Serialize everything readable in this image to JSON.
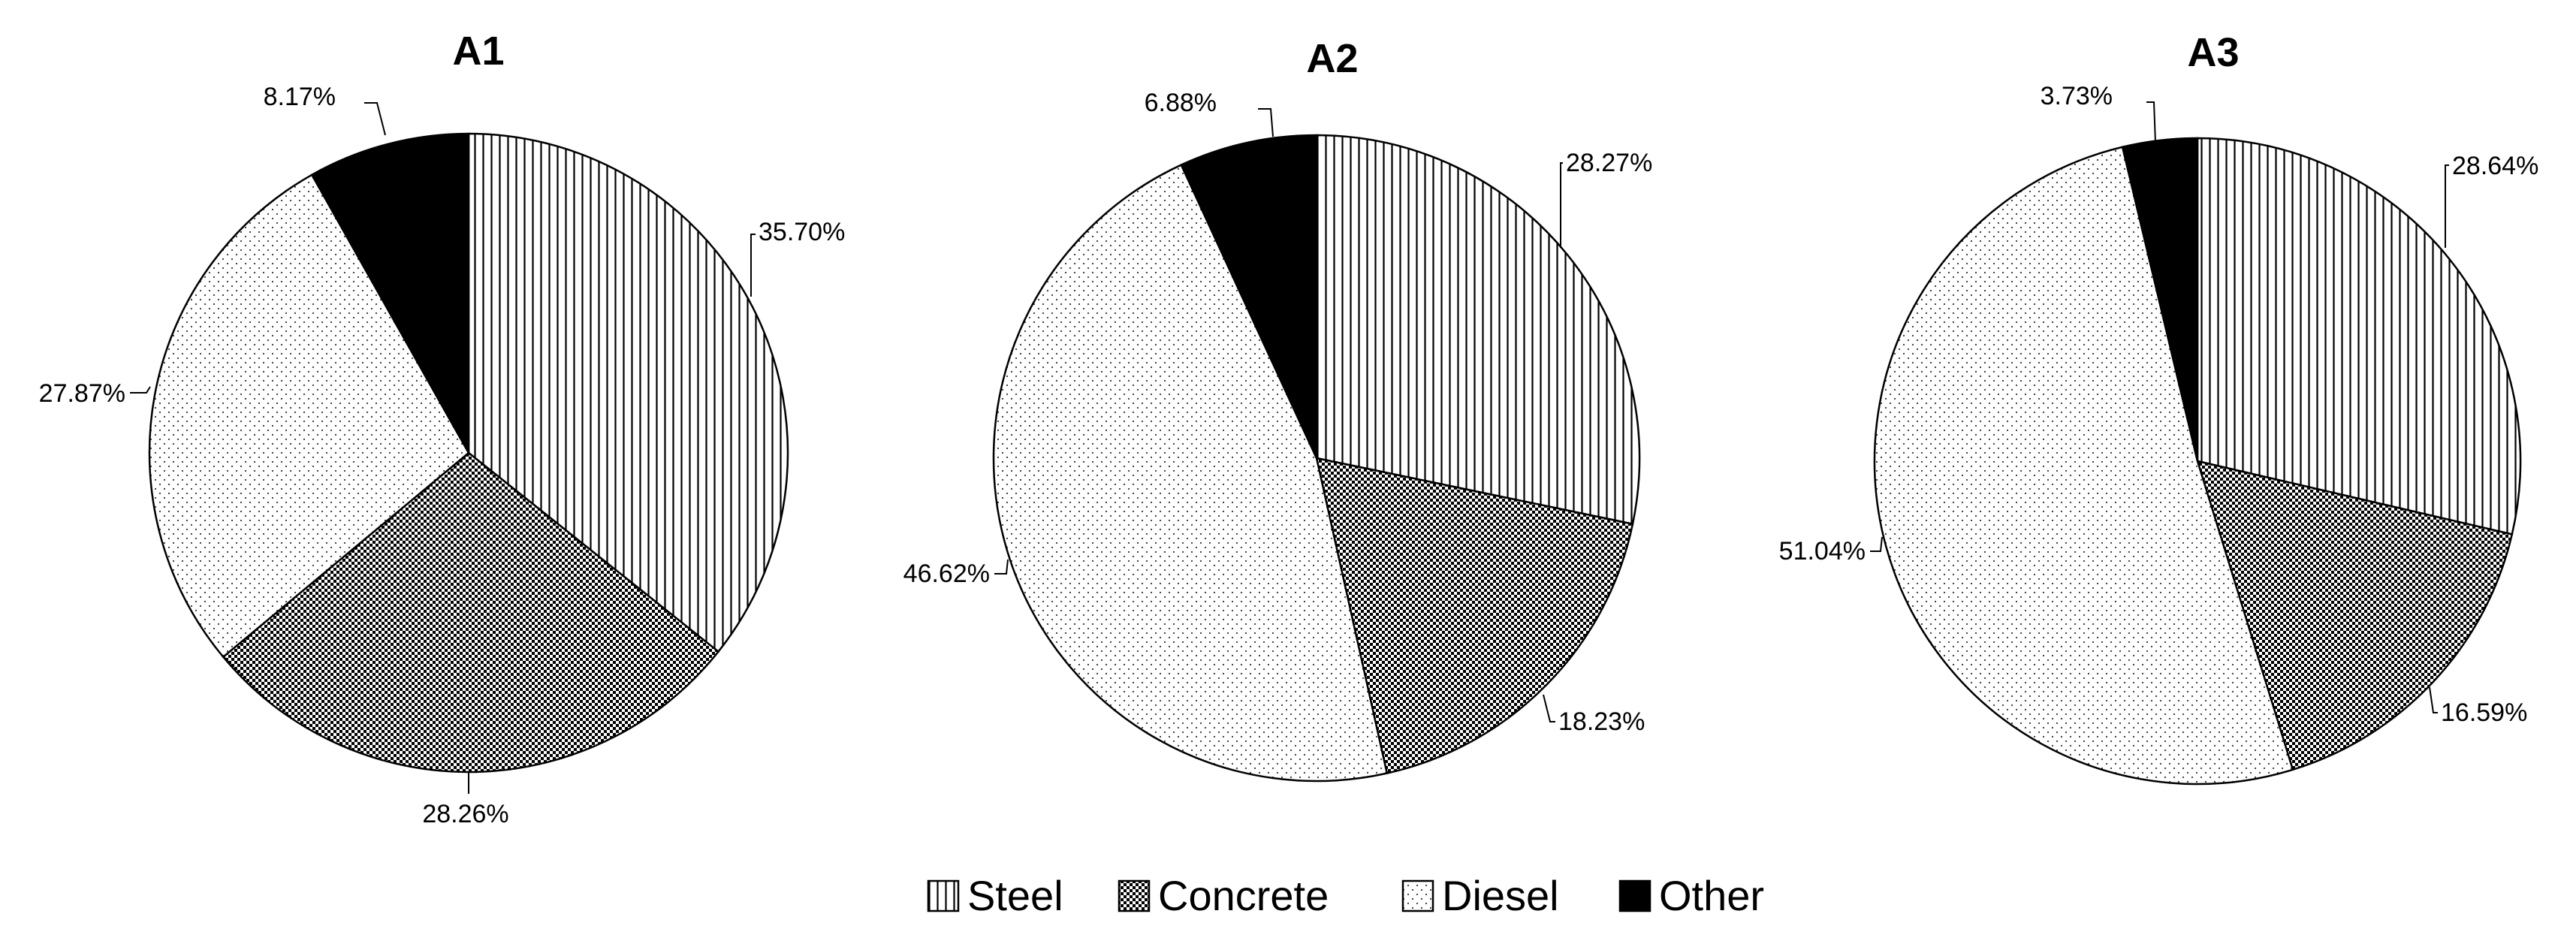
{
  "chart_data": [
    {
      "type": "pie",
      "title": "A1",
      "categories": [
        "Steel",
        "Concrete",
        "Diesel",
        "Other"
      ],
      "values": [
        35.7,
        28.26,
        27.87,
        8.17
      ],
      "labels": [
        "35.70%",
        "28.26%",
        "27.87%",
        "8.17%"
      ]
    },
    {
      "type": "pie",
      "title": "A2",
      "categories": [
        "Steel",
        "Concrete",
        "Diesel",
        "Other"
      ],
      "values": [
        28.27,
        18.23,
        46.62,
        6.88
      ],
      "labels": [
        "28.27%",
        "18.23%",
        "46.62%",
        "6.88%"
      ]
    },
    {
      "type": "pie",
      "title": "A3",
      "categories": [
        "Steel",
        "Concrete",
        "Diesel",
        "Other"
      ],
      "values": [
        28.64,
        16.59,
        51.04,
        3.73
      ],
      "labels": [
        "28.64%",
        "16.59%",
        "51.04%",
        "3.73%"
      ]
    }
  ],
  "legend": {
    "placement": "bottom-center",
    "items": [
      {
        "label": "Steel",
        "pattern": "vertical-lines"
      },
      {
        "label": "Concrete",
        "pattern": "checker"
      },
      {
        "label": "Diesel",
        "pattern": "dots"
      },
      {
        "label": "Other",
        "pattern": "solid-black"
      }
    ]
  },
  "colors": {
    "ink": "#000000",
    "background": "#ffffff"
  }
}
